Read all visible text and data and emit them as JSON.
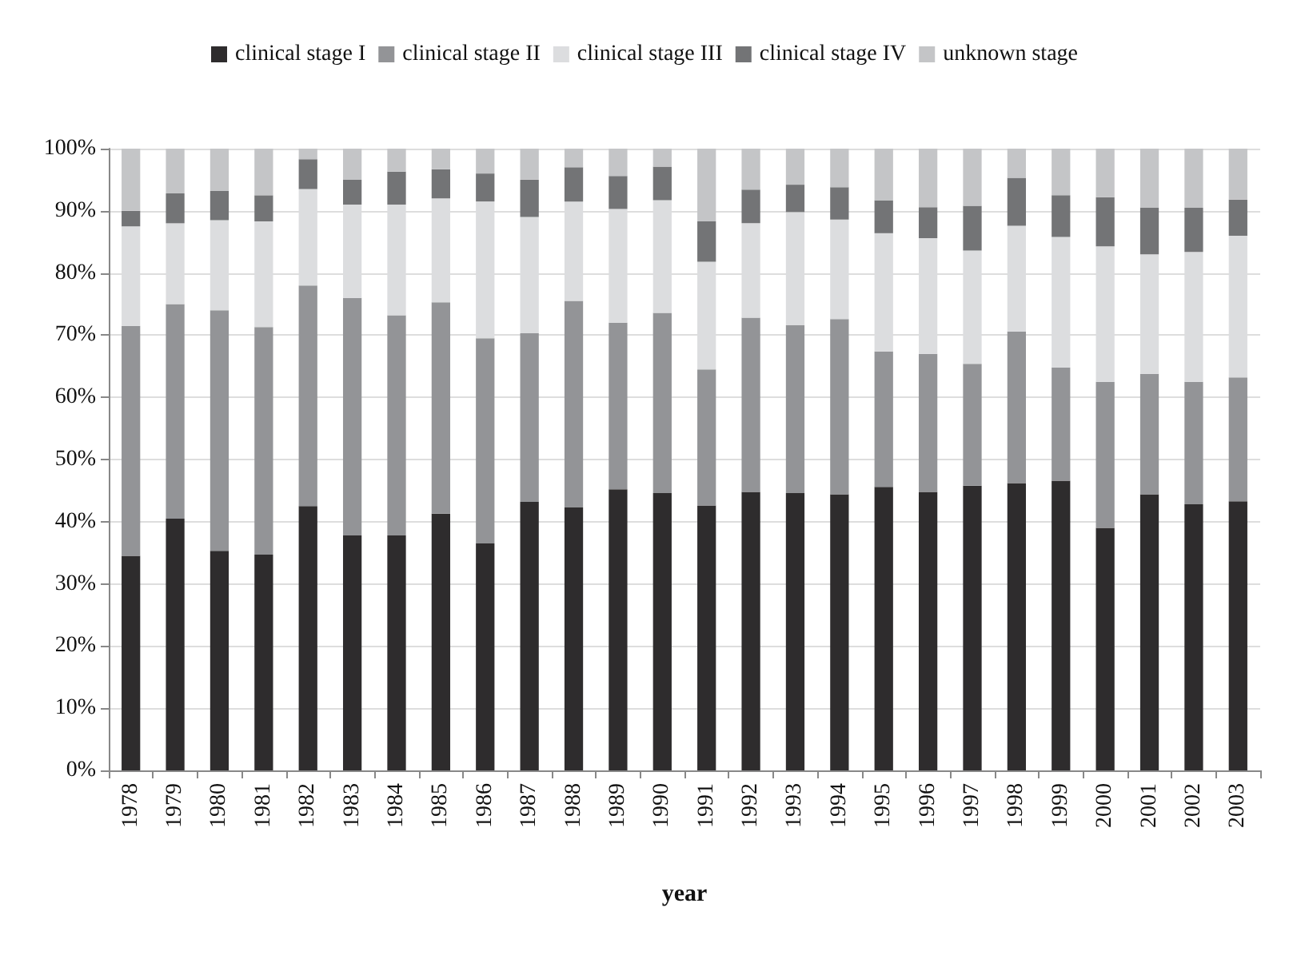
{
  "chart_data": {
    "type": "bar",
    "stacked": true,
    "xlabel": "year",
    "legend": "top",
    "grid": "y",
    "categories": [
      "1978",
      "1979",
      "1980",
      "1981",
      "1982",
      "1983",
      "1984",
      "1985",
      "1986",
      "1987",
      "1988",
      "1989",
      "1990",
      "1991",
      "1992",
      "1993",
      "1994",
      "1995",
      "1996",
      "1997",
      "1998",
      "1999",
      "2000",
      "2001",
      "2002",
      "2003"
    ],
    "ylim": [
      0,
      100
    ],
    "yticks": [
      {
        "value": 0,
        "label": "0%"
      },
      {
        "value": 10,
        "label": "10%"
      },
      {
        "value": 20,
        "label": "20%"
      },
      {
        "value": 30,
        "label": "30%"
      },
      {
        "value": 40,
        "label": "40%"
      },
      {
        "value": 50,
        "label": "50%"
      },
      {
        "value": 60,
        "label": "60%"
      },
      {
        "value": 70,
        "label": "70%"
      },
      {
        "value": 80,
        "label": "80%"
      },
      {
        "value": 90,
        "label": "90%"
      },
      {
        "value": 100,
        "label": "100%"
      }
    ],
    "series": [
      {
        "name": "clinical stage I",
        "color": "#2e2c2d",
        "values": [
          34.5,
          40.5,
          35.3,
          34.7,
          42.5,
          37.8,
          37.8,
          41.3,
          36.5,
          43.2,
          42.3,
          45.2,
          44.6,
          42.6,
          44.8,
          44.6,
          44.4,
          45.6,
          44.8,
          45.8,
          46.2,
          46.6,
          39.0,
          44.4,
          42.8,
          43.3
        ]
      },
      {
        "name": "clinical stage II",
        "color": "#939497",
        "values": [
          37.0,
          34.5,
          38.7,
          36.6,
          35.5,
          38.2,
          35.4,
          34.0,
          33.0,
          27.1,
          33.2,
          26.8,
          29.0,
          21.9,
          28.0,
          27.0,
          28.2,
          21.8,
          22.2,
          19.6,
          24.4,
          18.2,
          23.5,
          19.4,
          19.7,
          19.9
        ]
      },
      {
        "name": "clinical stage III",
        "color": "#dcdddf",
        "values": [
          16.0,
          13.0,
          14.5,
          17.0,
          15.5,
          15.0,
          17.8,
          16.7,
          22.0,
          18.7,
          16.0,
          18.3,
          18.1,
          17.3,
          15.2,
          18.2,
          16.0,
          19.0,
          18.6,
          18.2,
          17.0,
          21.0,
          21.8,
          19.2,
          20.9,
          22.8
        ]
      },
      {
        "name": "clinical stage IV",
        "color": "#737476",
        "values": [
          2.5,
          4.8,
          4.7,
          4.2,
          4.8,
          4.0,
          5.3,
          4.7,
          4.5,
          6.0,
          5.5,
          5.3,
          5.4,
          6.5,
          5.4,
          4.4,
          5.2,
          5.3,
          5.0,
          7.2,
          7.7,
          6.7,
          7.9,
          7.5,
          7.1,
          5.8
        ]
      },
      {
        "name": "unknown stage",
        "color": "#c4c5c7",
        "values": [
          10.0,
          7.2,
          6.8,
          7.5,
          1.7,
          5.0,
          3.7,
          3.3,
          4.0,
          5.0,
          3.0,
          4.4,
          2.9,
          11.7,
          6.6,
          5.8,
          6.2,
          8.3,
          9.4,
          9.2,
          4.7,
          7.5,
          7.8,
          9.5,
          9.5,
          8.2
        ]
      }
    ]
  }
}
